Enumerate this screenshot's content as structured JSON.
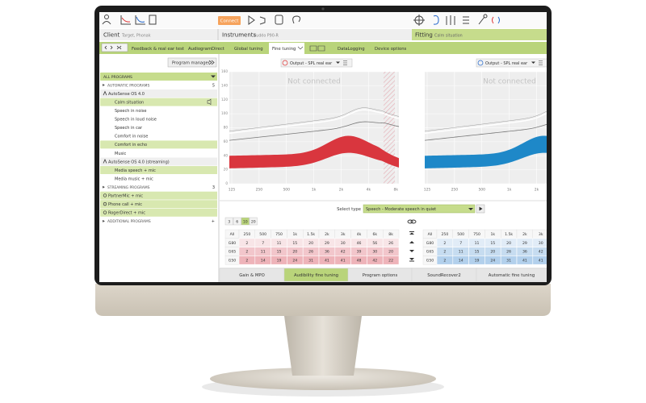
{
  "toolbar": {
    "connect": "Connect"
  },
  "header": {
    "client_label": "Client",
    "client_value": "Target, Phonak",
    "instruments_label": "Instruments",
    "instruments_value": "Audéo P90-R",
    "fitting_label": "Fitting",
    "fitting_value": "Calm situation"
  },
  "tabs": [
    "Feedback & real ear test",
    "AudiogramDirect",
    "Global tuning",
    "Fine tuning",
    "DataLogging",
    "Device options"
  ],
  "active_tab": 3,
  "program_manager": "Program manager",
  "programs": [
    {
      "label": "ALL PROGRAMS",
      "kind": "all"
    },
    {
      "label": "AUTOMATIC PROGRAMS",
      "kind": "section",
      "count": "5"
    },
    {
      "label": "AutoSense OS 4.0",
      "kind": "parent"
    },
    {
      "label": "Calm situation",
      "kind": "item",
      "selected": true
    },
    {
      "label": "Speech in noise",
      "kind": "item"
    },
    {
      "label": "Speech in loud noise",
      "kind": "item"
    },
    {
      "label": "Speech in car",
      "kind": "item"
    },
    {
      "label": "Comfort in noise",
      "kind": "item"
    },
    {
      "label": "Comfort in echo",
      "kind": "item",
      "selected": true
    },
    {
      "label": "Music",
      "kind": "item"
    },
    {
      "label": "AutoSense OS 4.0 (streaming)",
      "kind": "parent"
    },
    {
      "label": "Media speech + mic",
      "kind": "item",
      "selected": true
    },
    {
      "label": "Media music + mic",
      "kind": "item"
    },
    {
      "label": "STREAMING PROGRAMS",
      "kind": "section",
      "count": "3"
    },
    {
      "label": "PartnerMic + mic",
      "kind": "stream",
      "selected": true
    },
    {
      "label": "Phone call + mic",
      "kind": "stream",
      "selected": true
    },
    {
      "label": "RogerDirect + mic",
      "kind": "stream",
      "selected": true
    },
    {
      "label": "ADDITIONAL PROGRAMS",
      "kind": "section",
      "count": "+"
    }
  ],
  "charts": [
    {
      "output": "Output - SPL real ear",
      "status": "Not connected",
      "color": "#d9363e",
      "yticks": [
        "160",
        "140",
        "120",
        "100",
        "80",
        "60",
        "40",
        "20",
        "0"
      ],
      "xticks": [
        "125",
        "250",
        "500",
        "1k",
        "2k",
        "4k",
        "8k"
      ]
    },
    {
      "output": "Output - SPL real ear",
      "status": "Not connected",
      "color": "#1e88c8",
      "xticks": [
        "125",
        "250",
        "500",
        "1k",
        "2k"
      ]
    }
  ],
  "select_type": {
    "label": "Select type",
    "value": "Speech - Moderate speech in quiet"
  },
  "steps": [
    "3",
    "6",
    "10",
    "20"
  ],
  "active_step": 2,
  "tables": [
    {
      "headers": [
        "All",
        "250",
        "500",
        "750",
        "1k",
        "1.5k",
        "2k",
        "3k",
        "4k",
        "6k",
        "8k"
      ],
      "colors": [
        "#f8e5e7",
        "#f2c6cb",
        "#eeb3b9"
      ],
      "rows": [
        {
          "label": "G80",
          "cells": [
            2,
            7,
            11,
            15,
            20,
            29,
            30,
            46,
            56,
            26
          ]
        },
        {
          "label": "G65",
          "cells": [
            2,
            11,
            15,
            20,
            26,
            36,
            42,
            39,
            30,
            20
          ]
        },
        {
          "label": "G50",
          "cells": [
            2,
            14,
            19,
            24,
            31,
            41,
            41,
            48,
            42,
            22
          ]
        }
      ]
    },
    {
      "headers": [
        "All",
        "250",
        "500",
        "750",
        "1k",
        "1.5k",
        "2k",
        "3k"
      ],
      "colors": [
        "#e1ecf7",
        "#c6dcf0",
        "#b2d0ec"
      ],
      "rows": [
        {
          "label": "G80",
          "cells": [
            2,
            7,
            11,
            15,
            20,
            29,
            30
          ]
        },
        {
          "label": "G65",
          "cells": [
            2,
            11,
            15,
            20,
            26,
            36,
            42
          ]
        },
        {
          "label": "G50",
          "cells": [
            2,
            14,
            19,
            24,
            31,
            41,
            41
          ]
        }
      ]
    }
  ],
  "bottom_tabs": [
    "Gain & MPO",
    "Audibility fine tuning",
    "Program options",
    "SoundRecover2",
    "Automatic fine tuning"
  ],
  "active_bottom_tab": 1
}
